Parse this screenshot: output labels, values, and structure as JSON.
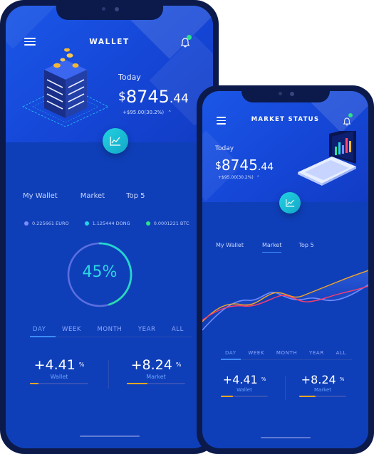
{
  "wallet_screen": {
    "title": "WALLET",
    "today_label": "Today",
    "balance": {
      "currency": "$",
      "integer": "8745",
      "decimal": ".44"
    },
    "change": "+$95.00(30.2%)",
    "tabs": [
      {
        "label": "My Wallet",
        "active": true
      },
      {
        "label": "Market",
        "active": false
      },
      {
        "label": "Top 5",
        "active": false
      }
    ],
    "legend": [
      {
        "label": "0.225661 EURO",
        "color": "#7b8cff"
      },
      {
        "label": "1.125444 DONG",
        "color": "#23d5ea"
      },
      {
        "label": "0.0001221 BTC",
        "color": "#2de28a"
      }
    ],
    "progress": {
      "label": "45%",
      "value": 0.45
    },
    "periods": [
      {
        "label": "DAY",
        "active": true
      },
      {
        "label": "WEEK",
        "active": false
      },
      {
        "label": "MONTH",
        "active": false
      },
      {
        "label": "YEAR",
        "active": false
      },
      {
        "label": "ALL",
        "active": false
      }
    ],
    "stats": [
      {
        "value": "+4.41",
        "unit": "%",
        "label": "Wallet",
        "fill": 0.15
      },
      {
        "value": "+8.24",
        "unit": "%",
        "label": "Market",
        "fill": 0.35
      }
    ]
  },
  "market_screen": {
    "title": "MARKET STATUS",
    "today_label": "Today",
    "balance": {
      "currency": "$",
      "integer": "8745",
      "decimal": ".44"
    },
    "change": "+$95.00(30.2%)",
    "tabs": [
      {
        "label": "My Wallet",
        "active": false
      },
      {
        "label": "Market",
        "active": true
      },
      {
        "label": "Top 5",
        "active": false
      }
    ],
    "periods": [
      {
        "label": "DAY",
        "active": true
      },
      {
        "label": "WEEK",
        "active": false
      },
      {
        "label": "MONTH",
        "active": false
      },
      {
        "label": "YEAR",
        "active": false
      },
      {
        "label": "ALL",
        "active": false
      }
    ],
    "stats": [
      {
        "value": "+4.41",
        "unit": "%",
        "label": "Wallet",
        "fill": 0.25
      },
      {
        "value": "+8.24",
        "unit": "%",
        "label": "Market",
        "fill": 0.35
      }
    ]
  },
  "colors": {
    "accent": "#3d8bff",
    "teal": "#22d3e0",
    "orange": "#f5a623",
    "bg": "#0f3fb8"
  }
}
